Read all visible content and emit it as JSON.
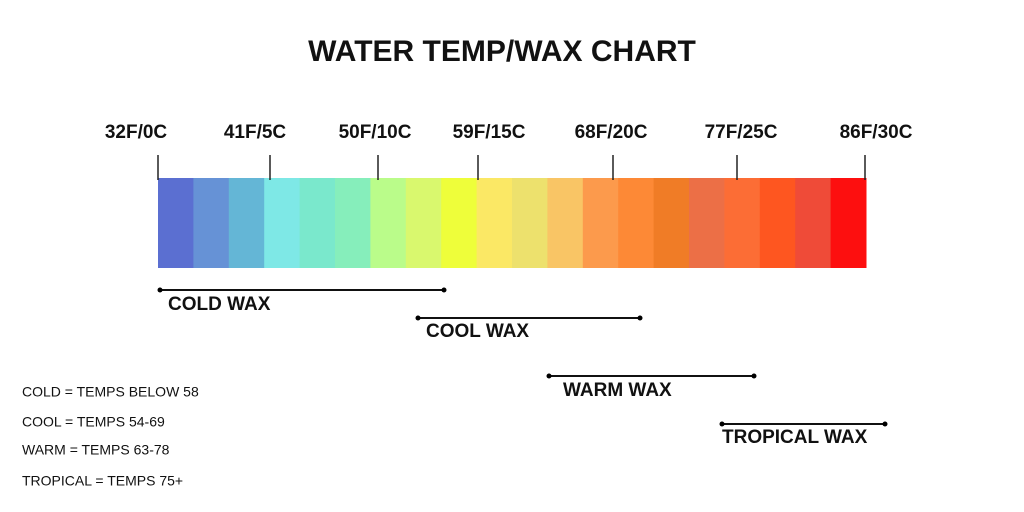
{
  "title": "WATER TEMP/WAX CHART",
  "temperatures": [
    "32F/0C",
    "41F/5C",
    "50F/10C",
    "59F/15C",
    "68F/20C",
    "77F/25C",
    "86F/30C"
  ],
  "colors": [
    "#5b6fd1",
    "#6692d6",
    "#64b6d6",
    "#7ee8e6",
    "#7ae8cc",
    "#86eebb",
    "#bafc8a",
    "#d9f86e",
    "#eefe3a",
    "#fbe865",
    "#ede16d",
    "#f9c565",
    "#fc9a4c",
    "#fd8936",
    "#f07c26",
    "#ec6f46",
    "#fc6d35",
    "#fe5620",
    "#ef4b38",
    "#fd0f0f"
  ],
  "wax_ranges": [
    "COLD WAX",
    "COOL WAX",
    "WARM WAX",
    "TROPICAL WAX"
  ],
  "legend": [
    "COLD = TEMPS BELOW 58",
    "COOL = TEMPS 54-69",
    "WARM = TEMPS 63-78",
    "TROPICAL = TEMPS 75+"
  ]
}
